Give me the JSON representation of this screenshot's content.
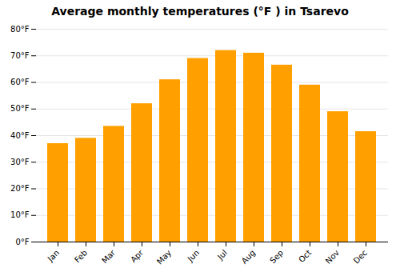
{
  "chart_data": {
    "type": "bar",
    "title": "Average monthly temperatures (°F ) in Tsarevo",
    "categories": [
      "Jan",
      "Feb",
      "Mar",
      "Apr",
      "May",
      "Jun",
      "Jul",
      "Aug",
      "Sep",
      "Oct",
      "Nov",
      "Dec"
    ],
    "values": [
      37,
      39,
      43.5,
      52,
      61,
      69,
      72,
      71,
      66.5,
      59,
      49,
      41.5
    ],
    "color": "#FFA000",
    "ylim": [
      0,
      80
    ],
    "yticks": [
      {
        "value": 0,
        "label": "0°F"
      },
      {
        "value": 10,
        "label": "10°F"
      },
      {
        "value": 20,
        "label": "20°F"
      },
      {
        "value": 30,
        "label": "30°F"
      },
      {
        "value": 40,
        "label": "40°F"
      },
      {
        "value": 50,
        "label": "50°F"
      },
      {
        "value": 60,
        "label": "60°F"
      },
      {
        "value": 70,
        "label": "70°F"
      },
      {
        "value": 80,
        "label": "80°F"
      }
    ],
    "grid": true
  }
}
